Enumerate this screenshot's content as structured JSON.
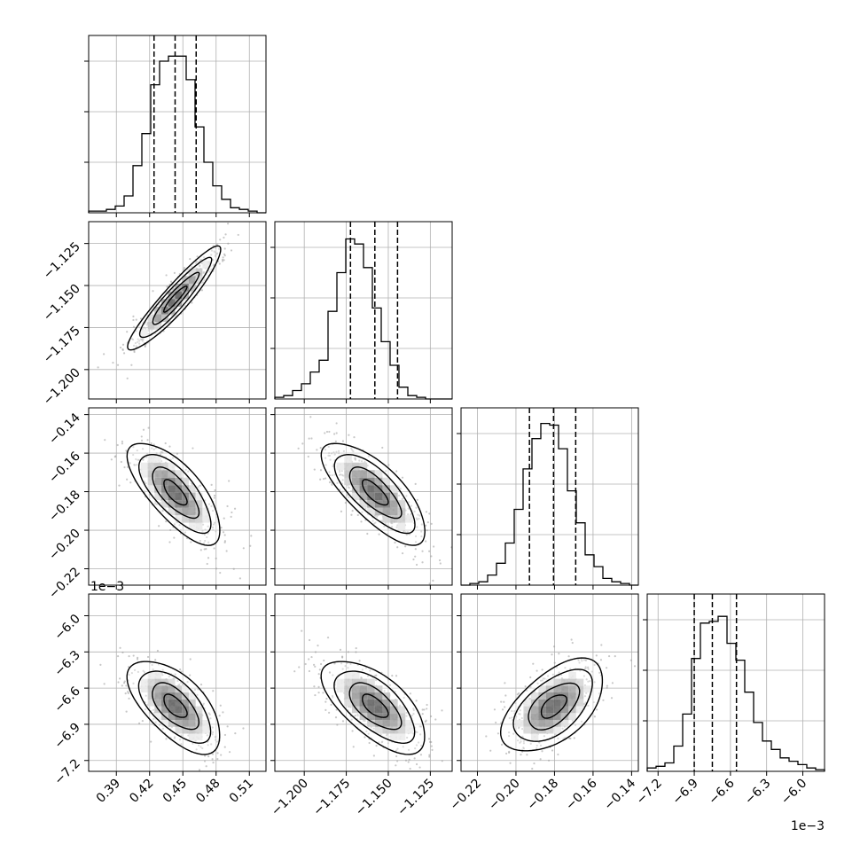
{
  "chart_data": {
    "type": "corner",
    "parameters": 4,
    "grid": true,
    "quantile_lines": 3,
    "quantile_style": "dashed",
    "histogram_style": "step",
    "contour_levels": 4,
    "colors": {
      "ink": "#000000",
      "grid": "#b0b0b0",
      "scatter": "#9a9a9a",
      "background": "#ffffff"
    },
    "params": [
      {
        "range": [
          0.365,
          0.525
        ],
        "ticks": [
          0.39,
          0.42,
          0.45,
          0.48,
          0.51
        ],
        "tick_labels": [
          "0.39",
          "0.42",
          "0.45",
          "0.48",
          "0.51"
        ],
        "quantiles": [
          0.424,
          0.443,
          0.462
        ],
        "hist": [
          0.01,
          0.01,
          0.02,
          0.04,
          0.1,
          0.28,
          0.47,
          0.76,
          0.9,
          0.93,
          0.93,
          0.79,
          0.51,
          0.3,
          0.16,
          0.08,
          0.03,
          0.02,
          0.01,
          0.0
        ]
      },
      {
        "range": [
          -1.2175,
          -1.112
        ],
        "ticks": [
          -1.2,
          -1.175,
          -1.15,
          -1.125
        ],
        "tick_labels": [
          "−1.200",
          "−1.175",
          "−1.150",
          "−1.125"
        ],
        "quantiles": [
          -1.1725,
          -1.158,
          -1.1445
        ],
        "hist": [
          0.01,
          0.02,
          0.05,
          0.09,
          0.16,
          0.23,
          0.52,
          0.75,
          0.95,
          0.92,
          0.78,
          0.54,
          0.34,
          0.2,
          0.07,
          0.02,
          0.01,
          0.0,
          0.0,
          0.0
        ]
      },
      {
        "range": [
          -0.2285,
          -0.1365
        ],
        "ticks": [
          -0.22,
          -0.2,
          -0.18,
          -0.16,
          -0.14
        ],
        "tick_labels": [
          "−0.22",
          "−0.20",
          "−0.18",
          "−0.16",
          "−0.14"
        ],
        "quantiles": [
          -0.193,
          -0.1805,
          -0.169
        ],
        "hist": [
          0.0,
          0.01,
          0.02,
          0.06,
          0.13,
          0.25,
          0.45,
          0.69,
          0.87,
          0.96,
          0.95,
          0.81,
          0.56,
          0.37,
          0.18,
          0.11,
          0.04,
          0.02,
          0.01,
          0.0
        ]
      },
      {
        "range": [
          -7.29,
          -5.82
        ],
        "ticks": [
          -7.2,
          -6.9,
          -6.6,
          -6.3,
          -6.0
        ],
        "tick_labels": [
          "−7.2",
          "−6.9",
          "−6.6",
          "−6.3",
          "−6.0"
        ],
        "quantiles": [
          -6.9,
          -6.75,
          -6.55
        ],
        "offset_label": "1e−3",
        "hist": [
          0.02,
          0.03,
          0.05,
          0.15,
          0.34,
          0.67,
          0.88,
          0.89,
          0.92,
          0.76,
          0.66,
          0.47,
          0.29,
          0.18,
          0.13,
          0.08,
          0.06,
          0.04,
          0.02,
          0.01
        ]
      }
    ]
  }
}
